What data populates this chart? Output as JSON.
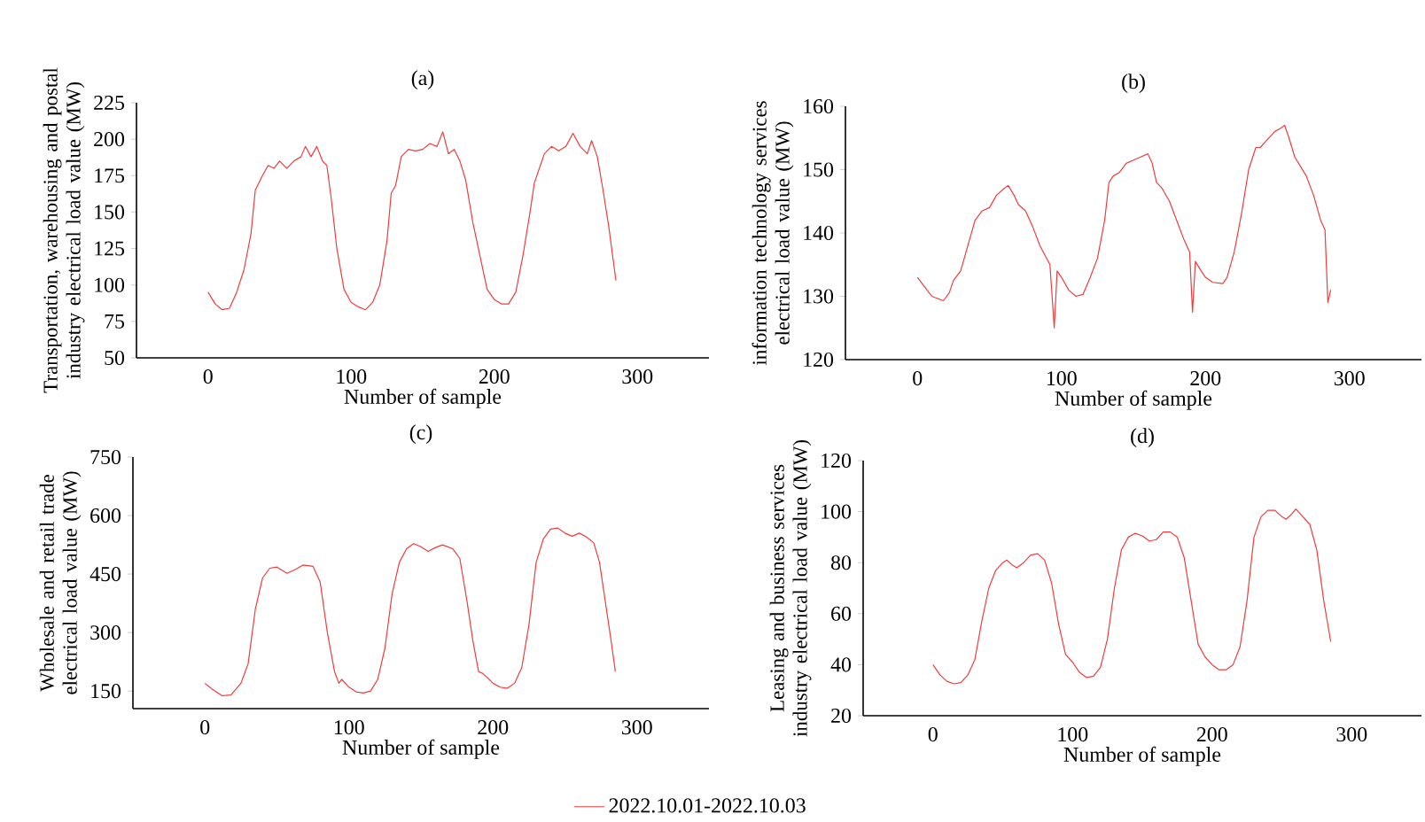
{
  "chart_data": [
    {
      "type": "line",
      "title": "(a)",
      "xlabel": "Number of sample",
      "ylabel": "Transportation, warehousing and postal industry electrical load value  (MW)",
      "xlim": [
        -50,
        350
      ],
      "ylim": [
        50,
        225
      ],
      "xticks": [
        0,
        100,
        200,
        300
      ],
      "yticks": [
        50,
        75,
        100,
        125,
        150,
        175,
        200,
        225
      ],
      "series": [
        {
          "color": "#f03c3c",
          "x": [
            0,
            5,
            10,
            15,
            20,
            25,
            30,
            33,
            38,
            42,
            46,
            50,
            55,
            60,
            65,
            68,
            72,
            76,
            80,
            83,
            86,
            90,
            95,
            100,
            105,
            110,
            115,
            120,
            125,
            128,
            131,
            135,
            140,
            145,
            150,
            155,
            160,
            164,
            168,
            172,
            176,
            180,
            185,
            190,
            195,
            200,
            205,
            210,
            215,
            220,
            225,
            228,
            235,
            240,
            245,
            250,
            255,
            260,
            265,
            268,
            272,
            276,
            280,
            285
          ],
          "values": [
            95,
            87,
            83,
            84,
            95,
            110,
            135,
            165,
            175,
            182,
            180,
            185,
            180,
            185,
            188,
            195,
            188,
            195,
            185,
            182,
            160,
            125,
            97,
            88,
            85,
            83,
            88,
            100,
            130,
            163,
            168,
            188,
            193,
            192,
            193,
            197,
            195,
            205,
            190,
            193,
            185,
            172,
            143,
            120,
            97,
            90,
            87,
            87,
            95,
            120,
            150,
            170,
            190,
            195,
            192,
            195,
            204,
            195,
            190,
            199,
            188,
            165,
            140,
            103
          ]
        }
      ]
    },
    {
      "type": "line",
      "title": "(b)",
      "xlabel": "Number of sample",
      "ylabel": "information technology services electrical load value  (MW)",
      "xlim": [
        -50,
        350
      ],
      "ylim": [
        120,
        160
      ],
      "xticks": [
        0,
        100,
        200,
        300
      ],
      "yticks": [
        120,
        130,
        140,
        150,
        160
      ],
      "series": [
        {
          "color": "#f03c3c",
          "x": [
            0,
            5,
            10,
            18,
            22,
            25,
            30,
            35,
            40,
            45,
            50,
            55,
            60,
            63,
            67,
            70,
            75,
            80,
            85,
            92,
            95,
            97,
            100,
            105,
            110,
            115,
            120,
            125,
            130,
            133,
            136,
            140,
            145,
            150,
            155,
            160,
            163,
            166,
            170,
            175,
            180,
            185,
            189,
            191,
            193,
            197,
            200,
            205,
            212,
            215,
            220,
            225,
            230,
            235,
            238,
            242,
            248,
            252,
            255,
            258,
            262,
            266,
            270,
            275,
            280,
            283,
            285,
            287
          ],
          "values": [
            133,
            131.5,
            130,
            129.3,
            130.5,
            132.5,
            134,
            138,
            142,
            143.5,
            144,
            146,
            147,
            147.5,
            146,
            144.5,
            143.5,
            141,
            138,
            135,
            125,
            134,
            133,
            131,
            130,
            130.3,
            133,
            136,
            142,
            148,
            149,
            149.5,
            151,
            151.5,
            152,
            152.5,
            151,
            148,
            147,
            145,
            142,
            139,
            137,
            127.5,
            135.5,
            134,
            133,
            132.2,
            132,
            133,
            137,
            143,
            150,
            153.5,
            153.5,
            154.5,
            156,
            156.5,
            157,
            155,
            152,
            150.5,
            149,
            146,
            142,
            140.5,
            129,
            131
          ]
        }
      ]
    },
    {
      "type": "line",
      "title": "(c)",
      "xlabel": "Number of sample",
      "ylabel": "Wholesale and retail trade electrical load value  (MW)",
      "xlim": [
        -50,
        350
      ],
      "ylim": [
        105,
        750
      ],
      "xticks": [
        0,
        100,
        200,
        300
      ],
      "yticks": [
        150,
        300,
        450,
        600,
        750
      ],
      "legend": "bottom",
      "series": [
        {
          "name": "2022.10.01-2022.10.03",
          "color": "#f03c3c",
          "x": [
            0,
            5,
            12,
            18,
            25,
            30,
            35,
            40,
            45,
            50,
            57,
            63,
            68,
            75,
            80,
            85,
            90,
            93,
            95,
            100,
            105,
            110,
            115,
            120,
            125,
            130,
            135,
            140,
            145,
            150,
            155,
            160,
            165,
            172,
            177,
            182,
            186,
            190,
            193,
            196,
            200,
            205,
            210,
            215,
            220,
            225,
            230,
            235,
            240,
            245,
            250,
            255,
            260,
            265,
            270,
            274,
            278,
            282,
            285
          ],
          "values": [
            170,
            155,
            138,
            140,
            170,
            220,
            360,
            440,
            465,
            468,
            452,
            462,
            473,
            470,
            430,
            300,
            200,
            170,
            180,
            160,
            148,
            145,
            150,
            180,
            260,
            400,
            480,
            515,
            528,
            520,
            508,
            518,
            525,
            515,
            490,
            380,
            280,
            200,
            195,
            185,
            170,
            160,
            157,
            170,
            210,
            320,
            480,
            540,
            565,
            568,
            555,
            547,
            555,
            545,
            530,
            480,
            380,
            280,
            200
          ]
        }
      ]
    },
    {
      "type": "line",
      "title": "(d)",
      "xlabel": "Number of sample",
      "ylabel": "Leasing and business services industry electrical load value  (MW)",
      "xlim": [
        -50,
        350
      ],
      "ylim": [
        20,
        120
      ],
      "xticks": [
        0,
        100,
        200,
        300
      ],
      "yticks": [
        20,
        40,
        60,
        80,
        100,
        120
      ],
      "series": [
        {
          "color": "#f03c3c",
          "x": [
            0,
            5,
            10,
            15,
            20,
            25,
            30,
            35,
            40,
            45,
            50,
            53,
            57,
            60,
            65,
            70,
            75,
            80,
            85,
            90,
            95,
            100,
            105,
            110,
            115,
            120,
            125,
            130,
            135,
            140,
            145,
            150,
            155,
            160,
            165,
            170,
            175,
            180,
            185,
            190,
            195,
            200,
            205,
            210,
            215,
            220,
            225,
            230,
            235,
            240,
            245,
            250,
            253,
            257,
            260,
            265,
            270,
            275,
            280,
            285
          ],
          "values": [
            40,
            36,
            33.5,
            32.5,
            33,
            36,
            42,
            57,
            70,
            77,
            80,
            81,
            79,
            78,
            80,
            83,
            83.5,
            81,
            72,
            56,
            44,
            41,
            37,
            35,
            35.5,
            39,
            50,
            70,
            85,
            90,
            91.5,
            90.5,
            88.5,
            89,
            92,
            92,
            90,
            82,
            65,
            48,
            43,
            40,
            38,
            38,
            40,
            47,
            65,
            90,
            98,
            100.5,
            100.5,
            98,
            97,
            99,
            101,
            98,
            95,
            85,
            65,
            49
          ]
        }
      ]
    }
  ]
}
